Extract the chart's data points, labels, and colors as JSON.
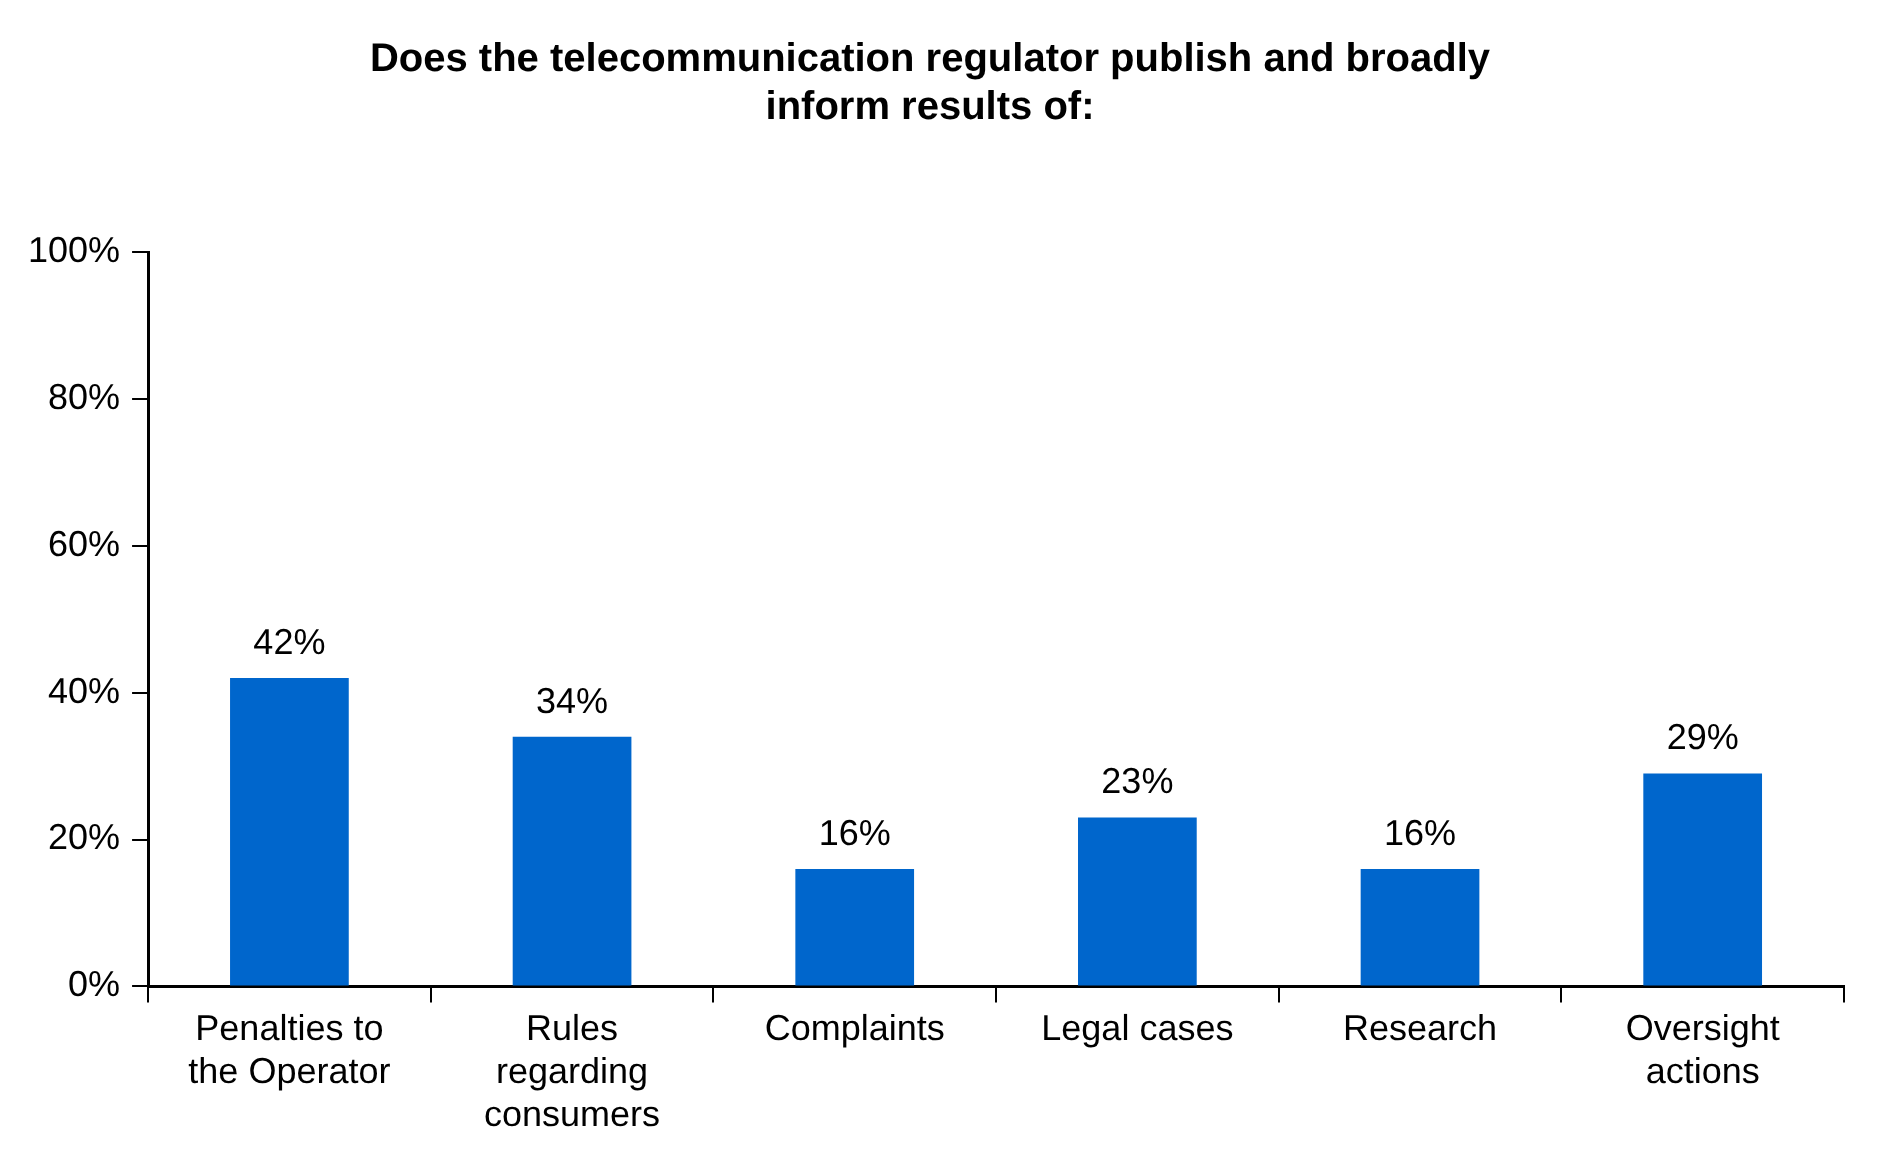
{
  "chart_data": {
    "type": "bar",
    "title": "Does the telecommunication regulator publish and broadly inform results of:",
    "categories": [
      "Penalties to the Operator",
      "Rules regarding consumers",
      "Complaints",
      "Legal cases",
      "Research",
      "Oversight actions"
    ],
    "values": [
      42,
      34,
      16,
      23,
      16,
      29
    ],
    "value_labels": [
      "42%",
      "34%",
      "16%",
      "23%",
      "16%",
      "29%"
    ],
    "color": "#0066cc",
    "ylim": [
      0,
      100
    ],
    "yticks": [
      {
        "value": 0,
        "label": "0%"
      },
      {
        "value": 20,
        "label": "20%"
      },
      {
        "value": 40,
        "label": "40%"
      },
      {
        "value": 60,
        "label": "60%"
      },
      {
        "value": 80,
        "label": "80%"
      },
      {
        "value": 100,
        "label": "100%"
      }
    ],
    "grid": false,
    "legend": false
  }
}
